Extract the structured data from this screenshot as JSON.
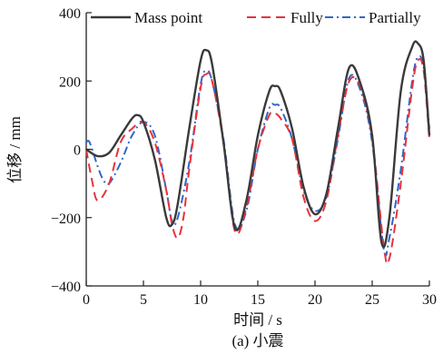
{
  "chart_data": {
    "type": "line",
    "title": "",
    "caption": "(a) 小震",
    "xlabel": "时间 / s",
    "ylabel": "位移 / mm",
    "xlim": [
      0,
      30
    ],
    "ylim": [
      -400,
      400
    ],
    "xticks": [
      0,
      5,
      10,
      15,
      20,
      25,
      30
    ],
    "yticks": [
      -400,
      -200,
      0,
      200,
      400
    ],
    "grid": false,
    "legend_position": "top",
    "series": [
      {
        "name": "Mass point",
        "color": "#3a3a3a",
        "dash": "solid",
        "x": [
          0,
          1,
          2,
          3,
          4,
          4.5,
          5,
          6,
          7,
          7.5,
          8,
          9,
          10,
          10.5,
          11,
          12,
          13,
          14,
          15,
          16,
          16.5,
          17,
          18,
          19,
          20,
          21,
          22,
          23,
          24,
          25,
          25.8,
          26.5,
          27.5,
          28.5,
          29,
          29.5,
          30
        ],
        "y": [
          0,
          -20,
          -10,
          40,
          90,
          100,
          80,
          -30,
          -200,
          -220,
          -160,
          60,
          260,
          290,
          250,
          20,
          -230,
          -150,
          40,
          170,
          185,
          170,
          60,
          -110,
          -190,
          -130,
          60,
          240,
          190,
          40,
          -270,
          -200,
          170,
          300,
          310,
          260,
          40
        ]
      },
      {
        "name": "Fully",
        "color": "#e8323c",
        "dash": "10,6",
        "x": [
          0,
          0.5,
          1,
          2,
          3,
          4,
          5,
          6,
          7,
          7.5,
          8,
          8.5,
          9,
          10,
          10.5,
          11,
          12,
          13,
          14,
          15,
          16,
          16.5,
          17,
          18,
          19,
          20,
          21,
          22,
          23,
          24,
          25,
          26,
          26.5,
          27.5,
          28.5,
          29,
          29.5,
          30
        ],
        "y": [
          0,
          -90,
          -150,
          -100,
          20,
          60,
          80,
          20,
          -120,
          -220,
          -260,
          -200,
          -60,
          180,
          220,
          200,
          20,
          -240,
          -170,
          0,
          100,
          105,
          90,
          30,
          -140,
          -210,
          -150,
          40,
          200,
          180,
          30,
          -280,
          -320,
          -100,
          180,
          260,
          230,
          30
        ]
      },
      {
        "name": "Partially",
        "color": "#2f67c8",
        "dash": "9,4,2,4",
        "x": [
          0,
          0.3,
          1,
          1.5,
          2,
          3,
          4,
          5,
          6,
          7,
          7.5,
          8,
          9,
          10,
          10.5,
          11,
          12,
          13,
          14,
          15,
          16,
          16.5,
          17,
          18,
          19,
          20,
          21,
          22,
          23,
          24,
          25,
          26,
          26.5,
          27.5,
          28.5,
          29,
          29.5,
          30
        ],
        "y": [
          20,
          20,
          -50,
          -90,
          -100,
          -40,
          40,
          80,
          40,
          -120,
          -210,
          -200,
          -40,
          190,
          230,
          200,
          30,
          -220,
          -180,
          0,
          120,
          130,
          120,
          30,
          -120,
          -180,
          -140,
          30,
          210,
          170,
          20,
          -290,
          -260,
          -60,
          200,
          270,
          240,
          60
        ]
      }
    ]
  }
}
